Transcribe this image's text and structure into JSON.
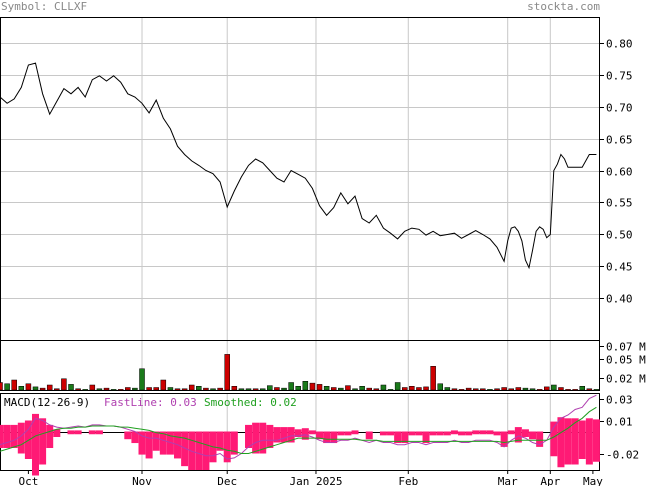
{
  "header": {
    "symbol_label": "Symbol: CLLXF",
    "site": "stockta.com"
  },
  "colors": {
    "price_line": "#000000",
    "grid": "#c8c8c8",
    "volume_up": "#1a7a1a",
    "volume_down": "#cc0000",
    "histogram": "#ff1a75",
    "fast_line": "#b040b0",
    "smoothed_line": "#20a020",
    "macd_title": "#000000"
  },
  "chart_data": [
    {
      "type": "line",
      "panel": "price",
      "ylim": [
        0.335,
        0.84
      ],
      "yticks": [
        "0.80",
        "0.75",
        "0.70",
        "0.65",
        "0.60",
        "0.55",
        "0.50",
        "0.45",
        "0.40"
      ],
      "ytick_values": [
        0.8,
        0.75,
        0.7,
        0.65,
        0.6,
        0.55,
        0.5,
        0.45,
        0.4
      ],
      "x_labels": [
        "Oct",
        "Nov",
        "Dec",
        "Jan 2025",
        "Feb",
        "Mar",
        "Apr",
        "May"
      ],
      "x_label_days": [
        8,
        40,
        64,
        89,
        115,
        143,
        155,
        167
      ],
      "x_gridlines": [
        40,
        64,
        89,
        115,
        143,
        155
      ],
      "x_domain": [
        0,
        169
      ],
      "series": [
        {
          "days": [
            0,
            2,
            4,
            6,
            8,
            10,
            12,
            14,
            16,
            18,
            20,
            22,
            24,
            26,
            28,
            30,
            32,
            34,
            36,
            38,
            40,
            42,
            44,
            46,
            48,
            50,
            52,
            54,
            56,
            58,
            60,
            62,
            64,
            66,
            68,
            70,
            72,
            74,
            76,
            78,
            80,
            82,
            84,
            86,
            88,
            90,
            92,
            94,
            96,
            98,
            100,
            102,
            104,
            106,
            108,
            110,
            112,
            114,
            116,
            118,
            120,
            122,
            124,
            126,
            128,
            130,
            132,
            134,
            136,
            138,
            140,
            142,
            143,
            144,
            145,
            146,
            147,
            148,
            149,
            150,
            151,
            152,
            153,
            154,
            155,
            156,
            157,
            158,
            159,
            160,
            162,
            164,
            166,
            168
          ],
          "close": [
            0.715,
            0.705,
            0.712,
            0.73,
            0.765,
            0.768,
            0.72,
            0.688,
            0.708,
            0.728,
            0.72,
            0.73,
            0.715,
            0.742,
            0.748,
            0.74,
            0.748,
            0.738,
            0.72,
            0.715,
            0.705,
            0.69,
            0.71,
            0.682,
            0.665,
            0.638,
            0.625,
            0.615,
            0.608,
            0.6,
            0.595,
            0.582,
            0.543,
            0.568,
            0.59,
            0.608,
            0.618,
            0.612,
            0.6,
            0.588,
            0.582,
            0.6,
            0.594,
            0.588,
            0.572,
            0.545,
            0.53,
            0.542,
            0.565,
            0.548,
            0.56,
            0.525,
            0.518,
            0.53,
            0.51,
            0.502,
            0.493,
            0.505,
            0.51,
            0.508,
            0.499,
            0.505,
            0.498,
            0.5,
            0.502,
            0.494,
            0.5,
            0.506,
            0.5,
            0.493,
            0.48,
            0.458,
            0.49,
            0.51,
            0.512,
            0.505,
            0.49,
            0.46,
            0.448,
            0.475,
            0.505,
            0.512,
            0.508,
            0.495,
            0.5,
            0.6,
            0.61,
            0.625,
            0.618,
            0.605,
            0.605,
            0.605,
            0.625,
            0.625
          ]
        }
      ]
    },
    {
      "type": "bar",
      "panel": "volume",
      "yticks": [
        "0.07 M",
        "0.05 M",
        "0.02 M"
      ],
      "ytick_values": [
        0.07,
        0.05,
        0.02
      ],
      "ylim": [
        0,
        0.08
      ],
      "unit": "M",
      "days": [
        0,
        2,
        4,
        6,
        8,
        10,
        12,
        14,
        16,
        18,
        20,
        22,
        24,
        26,
        28,
        30,
        32,
        34,
        36,
        38,
        40,
        42,
        44,
        46,
        48,
        50,
        52,
        54,
        56,
        58,
        60,
        62,
        64,
        66,
        68,
        70,
        72,
        74,
        76,
        78,
        80,
        82,
        84,
        86,
        88,
        90,
        92,
        94,
        96,
        98,
        100,
        102,
        104,
        106,
        108,
        110,
        112,
        114,
        116,
        118,
        120,
        122,
        124,
        126,
        128,
        130,
        132,
        134,
        136,
        138,
        140,
        142,
        144,
        146,
        148,
        150,
        152,
        154,
        156,
        158,
        160,
        162,
        164,
        166,
        168
      ],
      "values": [
        0.012,
        0.01,
        0.016,
        0.006,
        0.01,
        0.005,
        0.003,
        0.008,
        0.002,
        0.018,
        0.009,
        0.002,
        0.001,
        0.008,
        0.002,
        0.003,
        0.001,
        0.001,
        0.004,
        0.003,
        0.034,
        0.004,
        0.004,
        0.016,
        0.004,
        0.002,
        0.002,
        0.008,
        0.006,
        0.003,
        0.002,
        0.003,
        0.057,
        0.006,
        0.002,
        0.002,
        0.002,
        0.002,
        0.007,
        0.004,
        0.003,
        0.012,
        0.006,
        0.014,
        0.011,
        0.009,
        0.006,
        0.004,
        0.003,
        0.007,
        0.002,
        0.006,
        0.003,
        0.002,
        0.008,
        0.001,
        0.012,
        0.004,
        0.006,
        0.004,
        0.005,
        0.038,
        0.01,
        0.004,
        0.002,
        0.001,
        0.003,
        0.002,
        0.002,
        0.001,
        0.002,
        0.004,
        0.002,
        0.004,
        0.003,
        0.002,
        0.001,
        0.005,
        0.008,
        0.004,
        0.001,
        0.001,
        0.006,
        0.002,
        0.001
      ],
      "up": [
        false,
        true,
        false,
        true,
        false,
        true,
        false,
        false,
        false,
        false,
        true,
        false,
        true,
        false,
        true,
        false,
        true,
        false,
        false,
        true,
        true,
        false,
        false,
        false,
        true,
        false,
        false,
        false,
        true,
        false,
        true,
        false,
        false,
        false,
        true,
        true,
        false,
        true,
        true,
        false,
        true,
        true,
        true,
        true,
        false,
        false,
        true,
        false,
        true,
        false,
        true,
        true,
        false,
        false,
        true,
        true,
        true,
        false,
        false,
        false,
        false,
        false,
        true,
        true,
        false,
        false,
        false,
        false,
        false,
        true,
        false,
        false,
        false,
        false,
        true,
        true,
        false,
        false,
        true,
        false,
        false,
        false,
        true,
        false,
        true
      ]
    },
    {
      "type": "line",
      "panel": "macd",
      "title": "MACD(12-26-9)",
      "fastline_label": "FastLine:",
      "fastline_value": "0.03",
      "smoothed_label": "Smoothed:",
      "smoothed_value": "0.02",
      "yticks": [
        "0.03",
        "0.01",
        "-0.02"
      ],
      "ytick_values": [
        0.03,
        0.01,
        -0.02
      ],
      "ylim": [
        -0.035,
        0.035
      ],
      "zero_line": 0.0,
      "days": [
        0,
        2,
        4,
        6,
        8,
        10,
        12,
        14,
        16,
        18,
        20,
        22,
        24,
        26,
        28,
        30,
        32,
        34,
        36,
        38,
        40,
        42,
        44,
        46,
        48,
        50,
        52,
        54,
        56,
        58,
        60,
        62,
        64,
        66,
        68,
        70,
        72,
        74,
        76,
        78,
        80,
        82,
        84,
        86,
        88,
        90,
        92,
        94,
        96,
        98,
        100,
        102,
        104,
        106,
        108,
        110,
        112,
        114,
        116,
        118,
        120,
        122,
        124,
        126,
        128,
        130,
        132,
        134,
        136,
        138,
        140,
        142,
        144,
        146,
        148,
        150,
        152,
        154,
        156,
        158,
        160,
        162,
        164,
        166,
        168
      ],
      "fast": [
        -0.012,
        -0.01,
        -0.008,
        -0.004,
        0.002,
        0.012,
        0.01,
        0.006,
        0.004,
        0.003,
        0.004,
        0.005,
        0.004,
        0.006,
        0.006,
        0.005,
        0.005,
        0.004,
        0.002,
        0.0,
        -0.004,
        -0.006,
        -0.006,
        -0.008,
        -0.01,
        -0.012,
        -0.015,
        -0.018,
        -0.02,
        -0.022,
        -0.022,
        -0.02,
        -0.025,
        -0.024,
        -0.02,
        -0.014,
        -0.01,
        -0.008,
        -0.008,
        -0.008,
        -0.006,
        -0.004,
        -0.004,
        -0.003,
        -0.005,
        -0.008,
        -0.01,
        -0.01,
        -0.008,
        -0.008,
        -0.006,
        -0.008,
        -0.01,
        -0.008,
        -0.01,
        -0.01,
        -0.012,
        -0.012,
        -0.01,
        -0.01,
        -0.012,
        -0.01,
        -0.01,
        -0.01,
        -0.008,
        -0.01,
        -0.01,
        -0.008,
        -0.008,
        -0.008,
        -0.01,
        -0.014,
        -0.008,
        -0.004,
        -0.006,
        -0.01,
        -0.012,
        -0.008,
        0.004,
        0.012,
        0.015,
        0.02,
        0.022,
        0.03,
        0.033
      ],
      "smoothed": [
        -0.018,
        -0.016,
        -0.014,
        -0.012,
        -0.008,
        -0.004,
        -0.002,
        0.0,
        0.002,
        0.003,
        0.003,
        0.004,
        0.004,
        0.005,
        0.005,
        0.005,
        0.005,
        0.004,
        0.004,
        0.003,
        0.002,
        0.001,
        -0.001,
        -0.002,
        -0.004,
        -0.005,
        -0.006,
        -0.008,
        -0.01,
        -0.012,
        -0.014,
        -0.015,
        -0.017,
        -0.018,
        -0.02,
        -0.02,
        -0.018,
        -0.016,
        -0.014,
        -0.012,
        -0.01,
        -0.008,
        -0.006,
        -0.006,
        -0.006,
        -0.006,
        -0.007,
        -0.007,
        -0.007,
        -0.007,
        -0.007,
        -0.008,
        -0.008,
        -0.008,
        -0.009,
        -0.009,
        -0.009,
        -0.009,
        -0.009,
        -0.009,
        -0.009,
        -0.009,
        -0.009,
        -0.009,
        -0.009,
        -0.009,
        -0.009,
        -0.009,
        -0.009,
        -0.009,
        -0.009,
        -0.01,
        -0.009,
        -0.008,
        -0.008,
        -0.008,
        -0.008,
        -0.008,
        -0.005,
        -0.001,
        0.003,
        0.008,
        0.012,
        0.018,
        0.022
      ]
    }
  ]
}
